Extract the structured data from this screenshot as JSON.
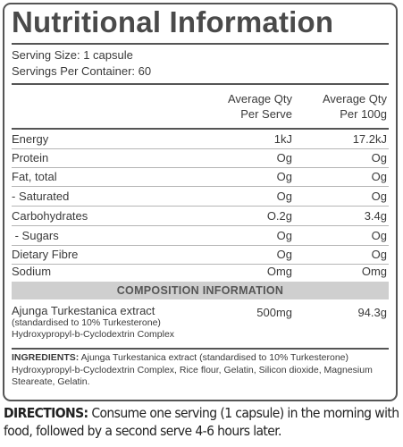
{
  "panel": {
    "title": "Nutritional Information",
    "serving_size": "Serving Size: 1 capsule",
    "servings_per_container": "Servings Per Container: 60"
  },
  "columns": {
    "per_serve_line1": "Average Qty",
    "per_serve_line2": "Per Serve",
    "per_100g_line1": "Average Qty",
    "per_100g_line2": "Per 100g"
  },
  "nutrients": [
    {
      "name": "Energy",
      "per_serve": "1kJ",
      "per_100g": "17.2kJ"
    },
    {
      "name": "Protein",
      "per_serve": "Og",
      "per_100g": "Og"
    },
    {
      "name": "Fat, total",
      "per_serve": "Og",
      "per_100g": "Og"
    },
    {
      "name": "- Saturated",
      "per_serve": "Og",
      "per_100g": "Og"
    },
    {
      "name": "Carbohydrates",
      "per_serve": "O.2g",
      "per_100g": "3.4g"
    },
    {
      "name": " - Sugars",
      "per_serve": "Og",
      "per_100g": "Og"
    },
    {
      "name": "Dietary Fibre",
      "per_serve": "Og",
      "per_100g": "Og"
    },
    {
      "name": "Sodium",
      "per_serve": "Omg",
      "per_100g": "Omg"
    }
  ],
  "composition": {
    "heading": "COMPOSITION INFORMATION",
    "item_name": "Ajunga Turkestanica extract",
    "item_note": "(standardised to 10% Turkesterone)",
    "item_note2": "Hydroxypropyl-b-Cyclodextrin Complex",
    "per_serve": "500mg",
    "per_100g": "94.3g"
  },
  "ingredients": {
    "label": "INGREDIENTS:",
    "text": " Ajunga Turkestanica extract (standardised to 10% Turkesterone) Hydroxypropyl-b-Cyclodextrin Complex, Rice flour, Gelatin, Silicon dioxide, Magnesium Steareate, Gelatin."
  },
  "directions": {
    "label": "DIRECTIONS:",
    "text": " Consume one serving (1 capsule) in the morning with food, followed by a second serve 4-6 hours later."
  }
}
